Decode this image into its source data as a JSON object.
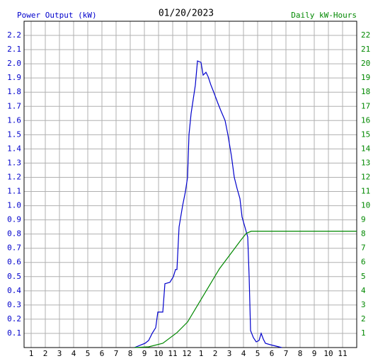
{
  "chart_data": {
    "type": "line",
    "title": "01/20/2023",
    "ylabel": "Power Output (kW)",
    "y2label": "Daily kW-Hours",
    "xlim": [
      0.5,
      24
    ],
    "xticks": [
      1,
      2,
      3,
      4,
      5,
      6,
      7,
      8,
      9,
      10,
      11,
      12,
      {
        "value": 13,
        "label": "1"
      },
      {
        "value": 14,
        "label": "2"
      },
      {
        "value": 15,
        "label": "3"
      },
      {
        "value": 16,
        "label": "4"
      },
      {
        "value": 17,
        "label": "5"
      },
      {
        "value": 18,
        "label": "6"
      },
      {
        "value": 19,
        "label": "7"
      },
      {
        "value": 20,
        "label": "8"
      },
      {
        "value": 21,
        "label": "9"
      },
      {
        "value": 22,
        "label": "10"
      },
      {
        "value": 23,
        "label": "11"
      }
    ],
    "ylim": [
      0,
      2.3
    ],
    "yticks": [
      0.1,
      0.2,
      0.3,
      0.4,
      0.5,
      0.6,
      0.7,
      0.8,
      0.9,
      {
        "value": 1,
        "label": "1.0"
      },
      1.1,
      1.2,
      1.3,
      1.4,
      1.5,
      1.6,
      1.7,
      1.8,
      1.9,
      {
        "value": 2,
        "label": "2.0"
      },
      2.1,
      2.2
    ],
    "y2lim": [
      0,
      23
    ],
    "y2ticks": [
      1,
      2,
      3,
      4,
      5,
      6,
      7,
      8,
      9,
      10,
      11,
      12,
      13,
      14,
      15,
      16,
      17,
      18,
      19,
      20,
      21,
      22
    ],
    "grid": true,
    "series": [
      {
        "name": "Power Output (kW)",
        "color": "#0000cc",
        "x": [
          8.3,
          8.8,
          9.05,
          9.3,
          9.55,
          9.8,
          9.95,
          10.3,
          10.45,
          10.8,
          11.05,
          11.2,
          11.3,
          11.45,
          11.7,
          11.9,
          12.05,
          12.15,
          12.3,
          12.45,
          12.6,
          12.75,
          13,
          13.15,
          13.35,
          13.5,
          13.7,
          13.9,
          14.2,
          14.4,
          14.7,
          14.9,
          15.15,
          15.35,
          15.55,
          15.75,
          15.9,
          16.1,
          16.3,
          16.4,
          16.5,
          16.7,
          16.9,
          17.1,
          17.25,
          17.4,
          17.55,
          17.9,
          18.3,
          18.7
        ],
        "values": [
          0,
          0.02,
          0.03,
          0.05,
          0.1,
          0.14,
          0.25,
          0.25,
          0.45,
          0.46,
          0.5,
          0.55,
          0.55,
          0.85,
          1.0,
          1.1,
          1.2,
          1.5,
          1.65,
          1.75,
          1.85,
          2.02,
          2.01,
          1.92,
          1.94,
          1.91,
          1.85,
          1.8,
          1.72,
          1.67,
          1.6,
          1.5,
          1.35,
          1.2,
          1.12,
          1.05,
          0.92,
          0.85,
          0.78,
          0.5,
          0.12,
          0.07,
          0.04,
          0.05,
          0.1,
          0.06,
          0.03,
          0.02,
          0.01,
          0
        ]
      },
      {
        "name": "Daily kW-Hours",
        "color": "#008800",
        "axis": "y2",
        "x": [
          8.3,
          9.3,
          10.3,
          11.3,
          12.05,
          12.8,
          13.55,
          14.3,
          15.05,
          15.8,
          16.2,
          16.55,
          24
        ],
        "values": [
          0,
          0.05,
          0.3,
          1.05,
          1.8,
          3.05,
          4.3,
          5.55,
          6.55,
          7.55,
          8.05,
          8.2,
          8.2
        ]
      }
    ]
  }
}
